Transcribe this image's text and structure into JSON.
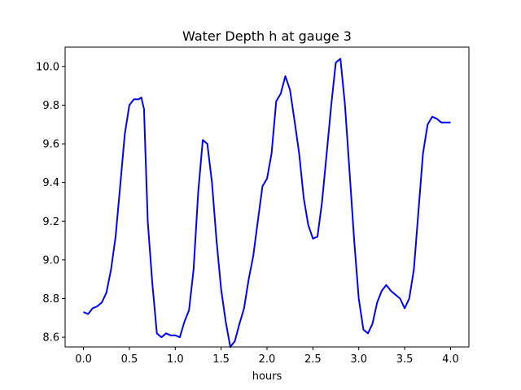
{
  "chart_data": {
    "type": "line",
    "title": "Water Depth h at gauge 3",
    "xlabel": "hours",
    "ylabel": "",
    "xlim": [
      -0.2,
      4.2
    ],
    "ylim": [
      8.55,
      10.1
    ],
    "xticks": [
      0.0,
      0.5,
      1.0,
      1.5,
      2.0,
      2.5,
      3.0,
      3.5,
      4.0
    ],
    "xtick_labels": [
      "0.0",
      "0.5",
      "1.0",
      "1.5",
      "2.0",
      "2.5",
      "3.0",
      "3.5",
      "4.0"
    ],
    "yticks": [
      8.6,
      8.8,
      9.0,
      9.2,
      9.4,
      9.6,
      9.8,
      10.0
    ],
    "ytick_labels": [
      "8.6",
      "8.8",
      "9.0",
      "9.2",
      "9.4",
      "9.6",
      "9.8",
      "10.0"
    ],
    "grid": false,
    "series": [
      {
        "color": "#0000ff",
        "x": [
          0.0,
          0.05,
          0.1,
          0.15,
          0.2,
          0.25,
          0.3,
          0.35,
          0.4,
          0.45,
          0.5,
          0.55,
          0.6,
          0.63,
          0.66,
          0.7,
          0.75,
          0.8,
          0.85,
          0.9,
          0.95,
          1.0,
          1.05,
          1.1,
          1.15,
          1.2,
          1.25,
          1.3,
          1.35,
          1.4,
          1.45,
          1.5,
          1.55,
          1.6,
          1.65,
          1.7,
          1.75,
          1.8,
          1.85,
          1.9,
          1.95,
          2.0,
          2.05,
          2.1,
          2.15,
          2.2,
          2.25,
          2.3,
          2.35,
          2.4,
          2.45,
          2.5,
          2.55,
          2.6,
          2.65,
          2.7,
          2.75,
          2.8,
          2.85,
          2.9,
          2.95,
          3.0,
          3.05,
          3.1,
          3.15,
          3.2,
          3.25,
          3.3,
          3.35,
          3.4,
          3.45,
          3.5,
          3.55,
          3.6,
          3.65,
          3.7,
          3.75,
          3.8,
          3.85,
          3.9,
          3.95,
          4.0
        ],
        "y": [
          8.73,
          8.72,
          8.75,
          8.76,
          8.78,
          8.83,
          8.95,
          9.12,
          9.38,
          9.65,
          9.8,
          9.83,
          9.83,
          9.84,
          9.78,
          9.2,
          8.88,
          8.62,
          8.6,
          8.62,
          8.61,
          8.61,
          8.6,
          8.68,
          8.74,
          8.95,
          9.35,
          9.62,
          9.6,
          9.4,
          9.1,
          8.85,
          8.68,
          8.55,
          8.58,
          8.67,
          8.75,
          8.9,
          9.02,
          9.2,
          9.38,
          9.42,
          9.55,
          9.82,
          9.86,
          9.95,
          9.88,
          9.72,
          9.55,
          9.32,
          9.18,
          9.11,
          9.12,
          9.3,
          9.55,
          9.8,
          10.02,
          10.04,
          9.8,
          9.45,
          9.1,
          8.8,
          8.64,
          8.62,
          8.67,
          8.78,
          8.84,
          8.87,
          8.84,
          8.82,
          8.8,
          8.75,
          8.8,
          8.95,
          9.25,
          9.55,
          9.7,
          9.74,
          9.73,
          9.71,
          9.71,
          9.71
        ]
      }
    ]
  }
}
